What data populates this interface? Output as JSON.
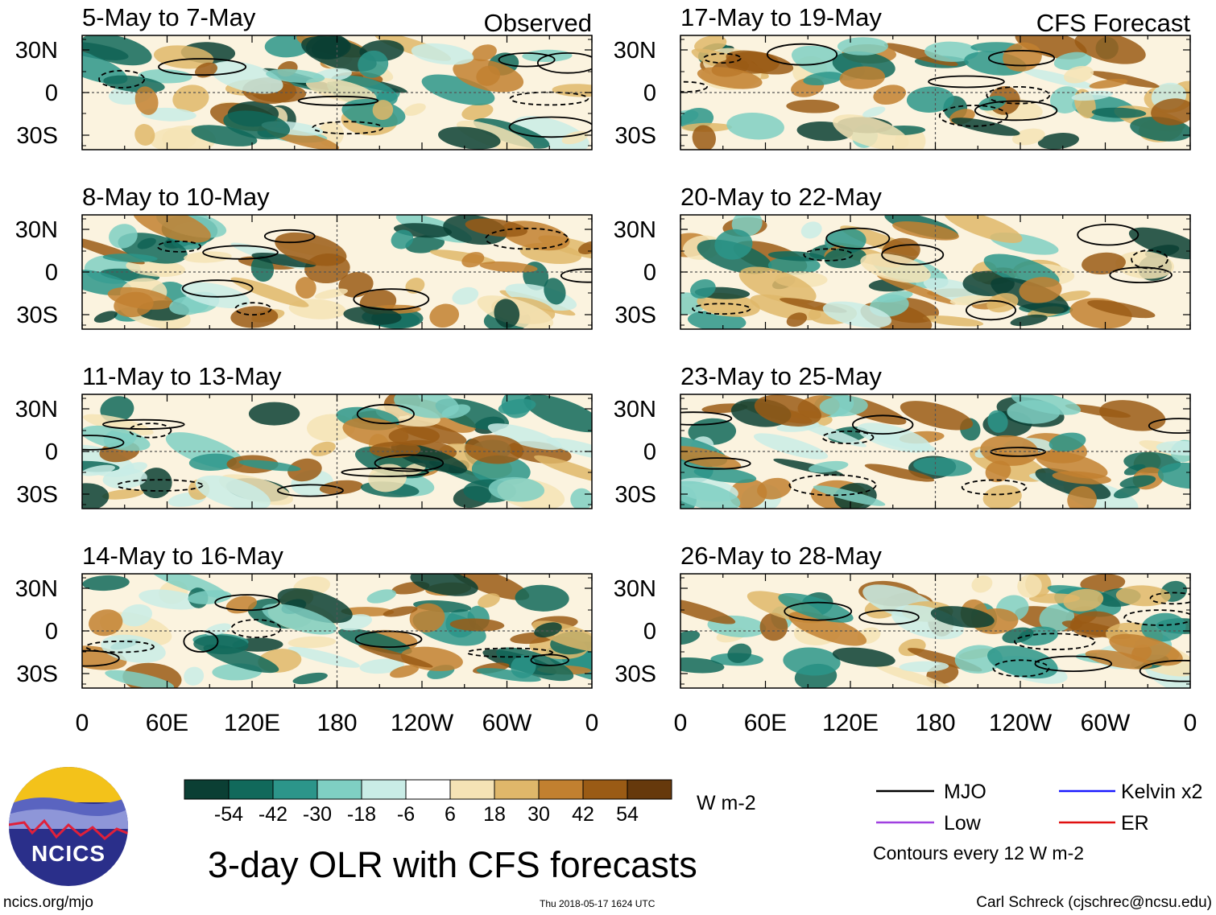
{
  "chart_data": {
    "type": "heatmap",
    "title": "3-day OLR with CFS forecasts",
    "units": "W m-2",
    "section_labels": {
      "left": "Observed",
      "right": "CFS Forecast"
    },
    "panels_left": [
      {
        "period": "5-May to 7-May"
      },
      {
        "period": "8-May to 10-May"
      },
      {
        "period": "11-May to 13-May"
      },
      {
        "period": "14-May to 16-May"
      }
    ],
    "panels_right": [
      {
        "period": "17-May to 19-May"
      },
      {
        "period": "20-May to 22-May"
      },
      {
        "period": "23-May to 25-May"
      },
      {
        "period": "26-May to 28-May"
      }
    ],
    "lat_ticks": [
      "30N",
      "0",
      "30S"
    ],
    "lon_ticks": [
      "0",
      "60E",
      "120E",
      "180",
      "120W",
      "60W",
      "0"
    ],
    "colorbar": {
      "labels": [
        "-54",
        "-42",
        "-30",
        "-18",
        "-6",
        "6",
        "18",
        "30",
        "42",
        "54"
      ],
      "colors": [
        "#0b3f34",
        "#11695b",
        "#2c958a",
        "#7fcfc3",
        "#c9ece6",
        "#ffffff",
        "#f5e3b5",
        "#dfb76a",
        "#c28030",
        "#9a5b15",
        "#66390c"
      ]
    },
    "legend": [
      {
        "label": "MJO",
        "color": "#000000"
      },
      {
        "label": "Kelvin x2",
        "color": "#1a1aff"
      },
      {
        "label": "Low",
        "color": "#a040e0"
      },
      {
        "label": "ER",
        "color": "#e01010"
      }
    ],
    "contour_note": "Contours every 12 W m-2"
  },
  "footer": {
    "left": "ncics.org/mjo",
    "middle": "Thu 2018-05-17 1624 UTC",
    "right": "Carl Schreck (cjschrec@ncsu.edu)"
  },
  "logo": {
    "text": "NCICS"
  }
}
